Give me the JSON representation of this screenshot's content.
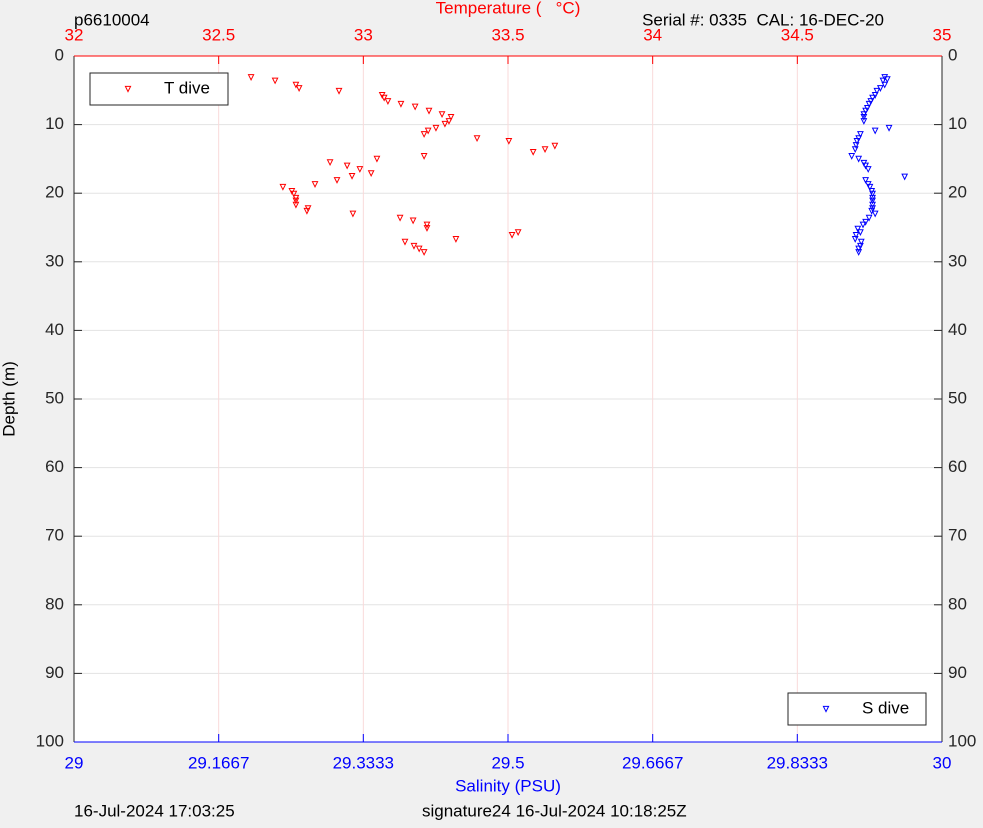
{
  "chart_data": {
    "type": "scatter",
    "title_left": "p6610004",
    "title_right": "Serial #: 0335  CAL: 16-DEC-20",
    "footer_left": "16-Jul-2024 17:03:25",
    "footer_right": "signature24 16-Jul-2024 10:18:25Z",
    "ylabel": "Depth (m)",
    "xlabel": "Salinity (PSU)",
    "x2label": "Temperature (   °C)",
    "xlabel_color": "#0000ff",
    "x2label_color": "#ff0000",
    "ylim": [
      0,
      100
    ],
    "y_reversed": true,
    "yticks": [
      0,
      10,
      20,
      30,
      40,
      50,
      60,
      70,
      80,
      90,
      100
    ],
    "xlim": [
      29,
      30
    ],
    "xticks": [
      29,
      29.1667,
      29.3333,
      29.5,
      29.6667,
      29.8333,
      30
    ],
    "x2lim": [
      32,
      35
    ],
    "x2ticks": [
      32,
      32.5,
      33,
      33.5,
      34,
      34.5,
      35
    ],
    "grid": true,
    "series": [
      {
        "name": "T dive",
        "color": "#ff0000",
        "axis": "x2",
        "legend": "upper left",
        "x": [
          32.612,
          32.695,
          32.767,
          32.778,
          32.916,
          33.065,
          33.072,
          33.085,
          33.13,
          33.179,
          33.227,
          33.272,
          33.303,
          33.296,
          33.282,
          33.251,
          33.224,
          33.21,
          33.393,
          33.503,
          33.662,
          33.628,
          33.587,
          33.21,
          33.047,
          32.885,
          32.944,
          32.988,
          33.027,
          32.961,
          32.909,
          32.833,
          32.722,
          32.753,
          32.76,
          32.767,
          32.767,
          32.767,
          32.809,
          32.805,
          32.964,
          33.127,
          33.172,
          33.22,
          33.22,
          33.535,
          33.514,
          33.32,
          33.144,
          33.175,
          33.193,
          33.21
        ],
        "values": [
          3.1,
          3.6,
          4.2,
          4.7,
          5.1,
          5.7,
          6.1,
          6.6,
          7.0,
          7.4,
          8.0,
          8.5,
          8.9,
          9.5,
          9.9,
          10.5,
          10.9,
          11.4,
          12.0,
          12.4,
          13.1,
          13.6,
          14.0,
          14.6,
          15.0,
          15.5,
          16.0,
          16.5,
          17.1,
          17.5,
          18.1,
          18.7,
          19.1,
          19.7,
          20.1,
          20.7,
          21.1,
          21.7,
          22.2,
          22.6,
          23.0,
          23.6,
          24.0,
          24.6,
          25.1,
          25.7,
          26.1,
          26.7,
          27.1,
          27.7,
          28.1,
          28.6
        ]
      },
      {
        "name": "S dive",
        "color": "#0000ff",
        "axis": "x",
        "legend": "lower right",
        "x": [
          29.934,
          29.937,
          29.932,
          29.934,
          29.929,
          29.925,
          29.923,
          29.92,
          29.918,
          29.916,
          29.914,
          29.912,
          29.91,
          29.91,
          29.91,
          29.939,
          29.923,
          29.906,
          29.904,
          29.902,
          29.901,
          29.9,
          29.896,
          29.904,
          29.91,
          29.912,
          29.915,
          29.957,
          29.912,
          29.915,
          29.917,
          29.919,
          29.92,
          29.92,
          29.92,
          29.92,
          29.92,
          29.919,
          29.923,
          29.916,
          29.912,
          29.909,
          29.903,
          29.906,
          29.901,
          29.9,
          29.907,
          29.906,
          29.904,
          29.904
        ],
        "values": [
          3.1,
          3.4,
          3.6,
          4.2,
          4.7,
          5.1,
          5.7,
          6.1,
          6.6,
          7.0,
          7.6,
          8.0,
          8.5,
          8.9,
          9.5,
          10.5,
          10.9,
          11.4,
          12.0,
          12.4,
          13.0,
          13.6,
          14.6,
          15.0,
          15.6,
          16.0,
          16.5,
          17.6,
          18.1,
          18.7,
          19.1,
          19.7,
          20.1,
          20.7,
          21.1,
          21.7,
          22.2,
          22.6,
          23.0,
          23.6,
          24.2,
          24.6,
          25.2,
          25.7,
          26.1,
          26.7,
          27.1,
          27.7,
          28.1,
          28.6
        ]
      }
    ]
  }
}
